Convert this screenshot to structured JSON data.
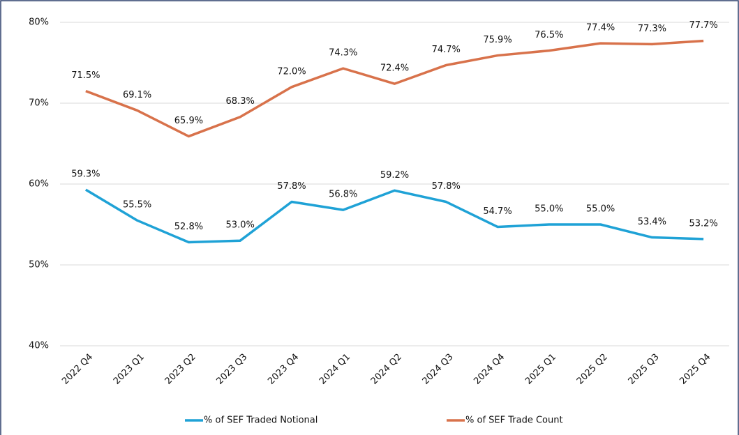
{
  "chart_data": {
    "type": "line",
    "categories": [
      "2022 Q4",
      "2023 Q1",
      "2023 Q2",
      "2023 Q3",
      "2023 Q4",
      "2024 Q1",
      "2024 Q2",
      "2024 Q3",
      "2024 Q4",
      "2025 Q1",
      "2025 Q2",
      "2025 Q3",
      "2025 Q4"
    ],
    "series": [
      {
        "name": "% of SEF Traded Notional",
        "color": "#1fa2d6",
        "values": [
          59.3,
          55.5,
          52.8,
          53.0,
          57.8,
          56.8,
          59.2,
          57.8,
          54.7,
          55.0,
          55.0,
          53.4,
          53.2
        ],
        "value_labels": [
          "59.3%",
          "55.5%",
          "52.8%",
          "53.0%",
          "57.8%",
          "56.8%",
          "59.2%",
          "57.8%",
          "54.7%",
          "55.0%",
          "55.0%",
          "53.4%",
          "53.2%"
        ]
      },
      {
        "name": "% of SEF Trade Count",
        "color": "#d8724b",
        "values": [
          71.5,
          69.1,
          65.9,
          68.3,
          72.0,
          74.3,
          72.4,
          74.7,
          75.9,
          76.5,
          77.4,
          77.3,
          77.7
        ],
        "value_labels": [
          "71.5%",
          "69.1%",
          "65.9%",
          "68.3%",
          "72.0%",
          "74.3%",
          "72.4%",
          "74.7%",
          "75.9%",
          "76.5%",
          "77.4%",
          "77.3%",
          "77.7%"
        ]
      }
    ],
    "ylim": [
      40,
      80
    ],
    "yticks": [
      {
        "value": 40,
        "label": "40%"
      },
      {
        "value": 50,
        "label": "50%"
      },
      {
        "value": 60,
        "label": "60%"
      },
      {
        "value": 70,
        "label": "70%"
      },
      {
        "value": 80,
        "label": "80%"
      }
    ],
    "grid": true,
    "legend": "bottom"
  }
}
